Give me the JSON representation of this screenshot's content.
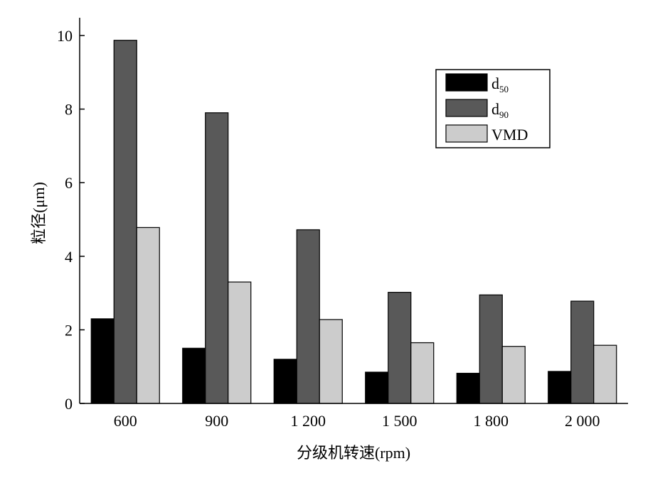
{
  "chart_data": {
    "type": "bar",
    "categories": [
      "600",
      "900",
      "1 200",
      "1 500",
      "1 800",
      "2 000"
    ],
    "series": [
      {
        "name": "d50",
        "color": "#000000",
        "values": [
          2.3,
          1.5,
          1.2,
          0.85,
          0.82,
          0.87
        ]
      },
      {
        "name": "d90",
        "color": "#595959",
        "values": [
          9.87,
          7.9,
          4.72,
          3.02,
          2.95,
          2.78
        ]
      },
      {
        "name": "VMD",
        "color": "#cccccc",
        "values": [
          4.78,
          3.3,
          2.28,
          1.65,
          1.55,
          1.58
        ]
      }
    ],
    "x_label": "分级机转速(rpm)",
    "y_label": "粒径(μm)",
    "ylim": [
      0,
      10
    ],
    "yticks": [
      0,
      2,
      4,
      6,
      8,
      10
    ],
    "legend": "upper right"
  }
}
